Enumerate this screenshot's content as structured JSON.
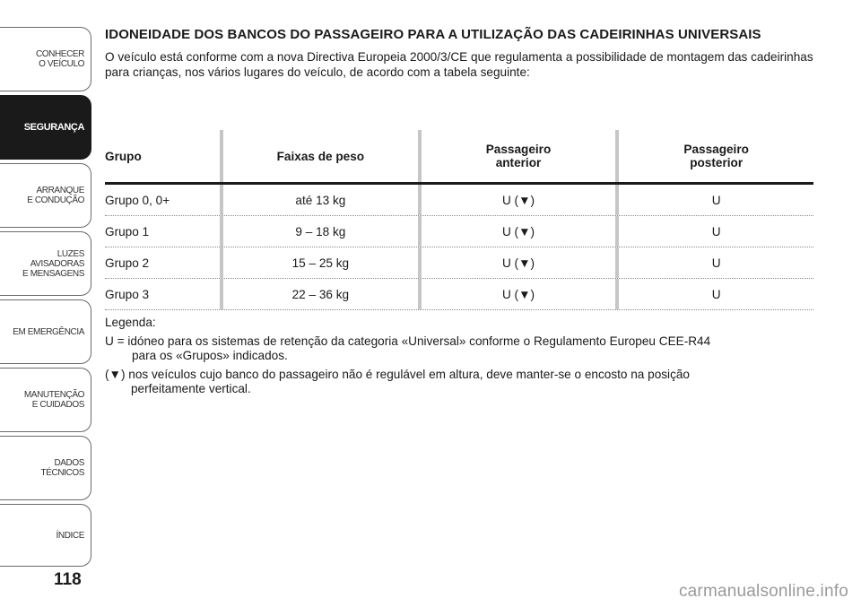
{
  "sidebar": {
    "tabs": [
      {
        "label": "CONHECER\nO VEÍCULO",
        "active": false
      },
      {
        "label": "SEGURANÇA",
        "active": true
      },
      {
        "label": "ARRANQUE\nE CONDUÇÃO",
        "active": false
      },
      {
        "label": "LUZES\nAVISADORAS\nE MENSAGENS",
        "active": false
      },
      {
        "label": "EM EMERGÊNCIA",
        "active": false
      },
      {
        "label": "MANUTENÇÃO\nE CUIDADOS",
        "active": false
      },
      {
        "label": "DADOS\nTÉCNICOS",
        "active": false
      },
      {
        "label": "ÍNDICE",
        "active": false
      }
    ]
  },
  "page_number": "118",
  "section": {
    "heading": "IDONEIDADE DOS BANCOS DO PASSAGEIRO PARA A UTILIZAÇÃO DAS CADEIRINHAS UNIVERSAIS",
    "intro": "O veículo está conforme com a nova Directiva Europeia 2000/3/CE que regulamenta a possibilidade de montagem das cadeirinhas para crianças, nos vários lugares do veículo, de acordo com a tabela seguinte:"
  },
  "table": {
    "headers": [
      "Grupo",
      "Faixas de peso",
      "Passageiro\nanterior",
      "Passageiro\nposterior"
    ],
    "rows": [
      [
        "Grupo 0, 0+",
        "até 13 kg",
        "U (▼)",
        "U"
      ],
      [
        "Grupo 1",
        "9 – 18 kg",
        "U (▼)",
        "U"
      ],
      [
        "Grupo 2",
        "15 – 25 kg",
        "U (▼)",
        "U"
      ],
      [
        "Grupo 3",
        "22 – 36 kg",
        "U (▼)",
        "U"
      ]
    ]
  },
  "legend": {
    "title": "Legenda:",
    "u_key": "U =",
    "u_line1": "idóneo para os sistemas de retenção da categoria «Universal» conforme o Regulamento Europeu CEE-R44",
    "u_line2": "para os «Grupos» indicados.",
    "tri_key": "(▼)",
    "tri_line1": "nos veículos cujo banco do passageiro não é regulável em altura, deve manter-se o encosto na posição",
    "tri_line2": "perfeitamente vertical."
  },
  "watermark": "carmanualsonline.info"
}
